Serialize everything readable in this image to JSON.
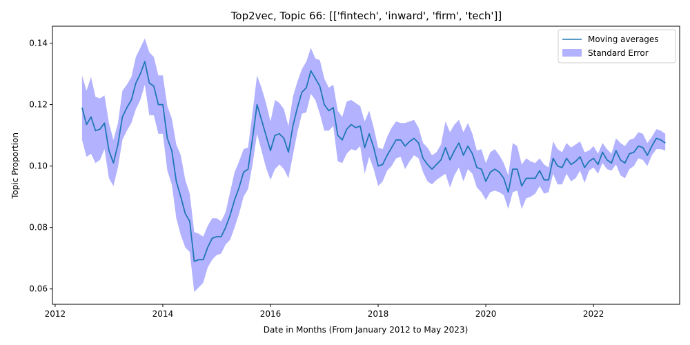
{
  "chart_data": {
    "type": "line",
    "title": "Top2vec, Topic 66: [['fintech', 'inward', 'firm', 'tech']]",
    "xlabel": "Date in Months (From January 2012 to May 2023)",
    "ylabel": "Topic Proportion",
    "xlim": [
      2011.95,
      2023.6
    ],
    "ylim": [
      0.055,
      0.1455
    ],
    "xticks": [
      2012,
      2014,
      2016,
      2018,
      2020,
      2022
    ],
    "yticks": [
      0.06,
      0.08,
      0.1,
      0.12,
      0.14
    ],
    "ytick_labels": [
      "0.06",
      "0.08",
      "0.10",
      "0.12",
      "0.14"
    ],
    "grid": false,
    "legend_position": "top-right",
    "series": [
      {
        "name": "Moving averages",
        "color": "#1f77b4",
        "x": [
          "2012-07",
          "2012-08",
          "2012-09",
          "2012-10",
          "2012-11",
          "2012-12",
          "2013-01",
          "2013-02",
          "2013-03",
          "2013-04",
          "2013-05",
          "2013-06",
          "2013-07",
          "2013-08",
          "2013-09",
          "2013-10",
          "2013-11",
          "2013-12",
          "2014-01",
          "2014-02",
          "2014-03",
          "2014-04",
          "2014-05",
          "2014-06",
          "2014-07",
          "2014-08",
          "2014-09",
          "2014-10",
          "2014-11",
          "2014-12",
          "2015-01",
          "2015-02",
          "2015-03",
          "2015-04",
          "2015-05",
          "2015-06",
          "2015-07",
          "2015-08",
          "2015-09",
          "2015-10",
          "2015-11",
          "2015-12",
          "2016-01",
          "2016-02",
          "2016-03",
          "2016-04",
          "2016-05",
          "2016-06",
          "2016-07",
          "2016-08",
          "2016-09",
          "2016-10",
          "2016-11",
          "2016-12",
          "2017-01",
          "2017-02",
          "2017-03",
          "2017-04",
          "2017-05",
          "2017-06",
          "2017-07",
          "2017-08",
          "2017-09",
          "2017-10",
          "2017-11",
          "2017-12",
          "2018-01",
          "2018-02",
          "2018-03",
          "2018-04",
          "2018-05",
          "2018-06",
          "2018-07",
          "2018-08",
          "2018-09",
          "2018-10",
          "2018-11",
          "2018-12",
          "2019-01",
          "2019-02",
          "2019-03",
          "2019-04",
          "2019-05",
          "2019-06",
          "2019-07",
          "2019-08",
          "2019-09",
          "2019-10",
          "2019-11",
          "2019-12",
          "2020-01",
          "2020-02",
          "2020-03",
          "2020-04",
          "2020-05",
          "2020-06",
          "2020-07",
          "2020-08",
          "2020-09",
          "2020-10",
          "2020-11",
          "2020-12",
          "2021-01",
          "2021-02",
          "2021-03",
          "2021-04",
          "2021-05",
          "2021-06",
          "2021-07",
          "2021-08",
          "2021-09",
          "2021-10",
          "2021-11",
          "2021-12",
          "2022-01",
          "2022-02",
          "2022-03",
          "2022-04",
          "2022-05",
          "2022-06",
          "2022-07",
          "2022-08",
          "2022-09",
          "2022-10",
          "2022-11",
          "2022-12",
          "2023-01",
          "2023-02",
          "2023-03",
          "2023-04",
          "2023-05"
        ],
        "values": [
          0.119,
          0.1135,
          0.116,
          0.1115,
          0.112,
          0.114,
          0.105,
          0.101,
          0.107,
          0.116,
          0.119,
          0.1215,
          0.127,
          0.13,
          0.134,
          0.127,
          0.126,
          0.12,
          0.12,
          0.109,
          0.105,
          0.095,
          0.09,
          0.0845,
          0.082,
          0.069,
          0.0695,
          0.0695,
          0.0735,
          0.0765,
          0.077,
          0.077,
          0.08,
          0.084,
          0.089,
          0.093,
          0.098,
          0.099,
          0.109,
          0.12,
          0.115,
          0.11,
          0.105,
          0.11,
          0.1105,
          0.109,
          0.1045,
          0.113,
          0.119,
          0.124,
          0.1255,
          0.131,
          0.1285,
          0.126,
          0.12,
          0.118,
          0.119,
          0.11,
          0.1085,
          0.112,
          0.1135,
          0.1125,
          0.113,
          0.106,
          0.1105,
          0.106,
          0.1,
          0.1005,
          0.1035,
          0.106,
          0.1085,
          0.1085,
          0.1065,
          0.108,
          0.109,
          0.1075,
          0.1025,
          0.1005,
          0.099,
          0.1005,
          0.102,
          0.106,
          0.102,
          0.105,
          0.1075,
          0.1035,
          0.1065,
          0.104,
          0.0995,
          0.099,
          0.095,
          0.098,
          0.099,
          0.098,
          0.096,
          0.0915,
          0.099,
          0.099,
          0.0935,
          0.096,
          0.096,
          0.096,
          0.0985,
          0.0955,
          0.0955,
          0.1025,
          0.1,
          0.0995,
          0.1025,
          0.1005,
          0.1015,
          0.103,
          0.0995,
          0.1015,
          0.1025,
          0.1005,
          0.1045,
          0.102,
          0.101,
          0.105,
          0.102,
          0.101,
          0.104,
          0.1045,
          0.1065,
          0.106,
          0.1035,
          0.1065,
          0.109,
          0.1085,
          0.1075
        ]
      }
    ],
    "band": {
      "name": "Standard Error",
      "color": "#0000ff",
      "alpha": 0.3,
      "lower": [
        0.1085,
        0.103,
        0.104,
        0.101,
        0.102,
        0.1055,
        0.096,
        0.0935,
        0.0995,
        0.1085,
        0.1115,
        0.114,
        0.1185,
        0.1215,
        0.1265,
        0.1165,
        0.1165,
        0.1105,
        0.1105,
        0.0985,
        0.094,
        0.083,
        0.0775,
        0.0735,
        0.072,
        0.059,
        0.0605,
        0.062,
        0.067,
        0.0695,
        0.071,
        0.0715,
        0.0745,
        0.076,
        0.08,
        0.0845,
        0.09,
        0.0925,
        0.1005,
        0.1105,
        0.105,
        0.0995,
        0.0955,
        0.099,
        0.1005,
        0.099,
        0.096,
        0.1035,
        0.111,
        0.117,
        0.1175,
        0.1235,
        0.1215,
        0.117,
        0.1115,
        0.1115,
        0.113,
        0.1015,
        0.101,
        0.104,
        0.1055,
        0.105,
        0.1065,
        0.0975,
        0.103,
        0.099,
        0.0935,
        0.095,
        0.0985,
        0.1,
        0.1025,
        0.103,
        0.099,
        0.1015,
        0.1035,
        0.1025,
        0.098,
        0.095,
        0.094,
        0.0955,
        0.0965,
        0.0975,
        0.093,
        0.097,
        0.0995,
        0.095,
        0.099,
        0.0975,
        0.093,
        0.0915,
        0.089,
        0.0915,
        0.092,
        0.0915,
        0.0905,
        0.086,
        0.0915,
        0.092,
        0.086,
        0.0895,
        0.09,
        0.091,
        0.0935,
        0.091,
        0.0915,
        0.0975,
        0.094,
        0.094,
        0.0975,
        0.095,
        0.096,
        0.0985,
        0.0945,
        0.0985,
        0.0995,
        0.0975,
        0.101,
        0.099,
        0.0985,
        0.1005,
        0.097,
        0.096,
        0.099,
        0.1,
        0.1025,
        0.102,
        0.1,
        0.1035,
        0.1055,
        0.1055,
        0.105
      ],
      "upper": [
        0.1295,
        0.1245,
        0.129,
        0.1225,
        0.122,
        0.123,
        0.114,
        0.1085,
        0.114,
        0.1245,
        0.1265,
        0.129,
        0.1355,
        0.1385,
        0.1415,
        0.137,
        0.1355,
        0.1295,
        0.1295,
        0.1195,
        0.1155,
        0.107,
        0.1035,
        0.0955,
        0.091,
        0.0785,
        0.078,
        0.077,
        0.0805,
        0.083,
        0.083,
        0.082,
        0.085,
        0.0915,
        0.098,
        0.1015,
        0.1055,
        0.106,
        0.1175,
        0.1295,
        0.1255,
        0.1205,
        0.1145,
        0.1215,
        0.1205,
        0.1185,
        0.113,
        0.1225,
        0.1275,
        0.1315,
        0.134,
        0.1385,
        0.135,
        0.1345,
        0.1285,
        0.1255,
        0.1265,
        0.118,
        0.116,
        0.121,
        0.1215,
        0.1205,
        0.1195,
        0.1145,
        0.118,
        0.1125,
        0.106,
        0.1055,
        0.1095,
        0.1125,
        0.1145,
        0.114,
        0.114,
        0.1145,
        0.115,
        0.1125,
        0.1075,
        0.106,
        0.1035,
        0.1045,
        0.107,
        0.1145,
        0.111,
        0.1135,
        0.115,
        0.111,
        0.114,
        0.1105,
        0.105,
        0.1055,
        0.101,
        0.1045,
        0.1055,
        0.1035,
        0.101,
        0.097,
        0.1075,
        0.1065,
        0.1005,
        0.1025,
        0.1015,
        0.101,
        0.1025,
        0.1005,
        0.0995,
        0.108,
        0.1055,
        0.1045,
        0.1075,
        0.106,
        0.107,
        0.108,
        0.1045,
        0.105,
        0.1065,
        0.104,
        0.1075,
        0.1055,
        0.104,
        0.109,
        0.1075,
        0.1065,
        0.1085,
        0.109,
        0.111,
        0.1105,
        0.1075,
        0.1095,
        0.112,
        0.1115,
        0.1105
      ]
    }
  }
}
